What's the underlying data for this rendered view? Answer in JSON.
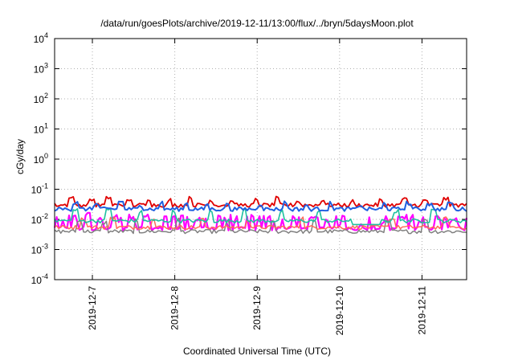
{
  "chart_data": {
    "type": "line",
    "title": "/data/run/goesPlots/archive/2019-12-11/13:00/flux/../bryn/5daysMoon.plot",
    "xlabel": "Coordinated Universal Time (UTC)",
    "ylabel": "cGy/day",
    "y_scale": "log",
    "ylim": [
      0.0001,
      10000
    ],
    "y_ticks": [
      {
        "value": 0.0001,
        "base": "10",
        "exp": "-4"
      },
      {
        "value": 0.001,
        "base": "10",
        "exp": "-3"
      },
      {
        "value": 0.01,
        "base": "10",
        "exp": "-2"
      },
      {
        "value": 0.1,
        "base": "10",
        "exp": "-1"
      },
      {
        "value": 1,
        "base": "10",
        "exp": "0"
      },
      {
        "value": 10,
        "base": "10",
        "exp": "1"
      },
      {
        "value": 100,
        "base": "10",
        "exp": "2"
      },
      {
        "value": 1000,
        "base": "10",
        "exp": "3"
      },
      {
        "value": 10000,
        "base": "10",
        "exp": "4"
      }
    ],
    "xlim": [
      "2019-12-06T13:00",
      "2019-12-11T13:00"
    ],
    "x_ticks": [
      "2019-12-7",
      "2019-12-8",
      "2019-12-9",
      "2019-12-10",
      "2019-12-11"
    ],
    "grid": true,
    "series": [
      {
        "color": "#ff00ff",
        "width": 2.2,
        "base": 0.005,
        "spikes": [
          [
            0.05,
            0.012
          ],
          [
            0.08,
            0.015
          ],
          [
            0.11,
            0.01
          ],
          [
            0.15,
            0.014
          ],
          [
            0.19,
            0.011
          ],
          [
            0.22,
            0.013
          ],
          [
            0.27,
            0.012
          ],
          [
            0.31,
            0.014
          ],
          [
            0.35,
            0.01
          ],
          [
            0.4,
            0.013
          ],
          [
            0.44,
            0.012
          ],
          [
            0.48,
            0.011
          ],
          [
            0.52,
            0.013
          ],
          [
            0.58,
            0.012
          ],
          [
            0.62,
            0.014
          ],
          [
            0.66,
            0.01
          ],
          [
            0.7,
            0.012
          ],
          [
            0.8,
            0.013
          ],
          [
            0.84,
            0.012
          ],
          [
            0.89,
            0.011
          ],
          [
            0.93,
            0.012
          ],
          [
            0.97,
            0.01
          ]
        ]
      },
      {
        "color": "#808080",
        "width": 1.5,
        "base": 0.004,
        "spikes": [
          [
            0.06,
            0.009
          ],
          [
            0.12,
            0.008
          ],
          [
            0.2,
            0.009
          ],
          [
            0.3,
            0.01
          ],
          [
            0.42,
            0.009
          ],
          [
            0.53,
            0.008
          ],
          [
            0.63,
            0.009
          ],
          [
            0.81,
            0.008
          ],
          [
            0.9,
            0.009
          ]
        ]
      },
      {
        "color": "#ff6a5a",
        "width": 1.5,
        "base": 0.0055,
        "spikes": [
          [
            0.07,
            0.01
          ],
          [
            0.14,
            0.011
          ],
          [
            0.24,
            0.01
          ],
          [
            0.36,
            0.011
          ],
          [
            0.47,
            0.01
          ],
          [
            0.6,
            0.011
          ],
          [
            0.82,
            0.01
          ],
          [
            0.95,
            0.011
          ]
        ]
      },
      {
        "color": "#20c0a0",
        "width": 1.6,
        "base": 0.009,
        "spikes": [
          [
            0.05,
            0.02
          ],
          [
            0.13,
            0.022
          ],
          [
            0.21,
            0.018
          ],
          [
            0.29,
            0.02
          ],
          [
            0.38,
            0.019
          ],
          [
            0.46,
            0.021
          ],
          [
            0.55,
            0.018
          ],
          [
            0.64,
            0.02
          ],
          [
            0.83,
            0.019
          ],
          [
            0.92,
            0.02
          ]
        ]
      },
      {
        "color": "#e00000",
        "width": 1.8,
        "base": 0.03,
        "spikes": [
          [
            0.04,
            0.05
          ],
          [
            0.09,
            0.045
          ],
          [
            0.13,
            0.05
          ],
          [
            0.18,
            0.04
          ],
          [
            0.23,
            0.048
          ],
          [
            0.28,
            0.045
          ],
          [
            0.33,
            0.05
          ],
          [
            0.38,
            0.042
          ],
          [
            0.43,
            0.046
          ],
          [
            0.49,
            0.044
          ],
          [
            0.54,
            0.05
          ],
          [
            0.59,
            0.04
          ],
          [
            0.65,
            0.045
          ],
          [
            0.72,
            0.04
          ],
          [
            0.79,
            0.045
          ],
          [
            0.85,
            0.047
          ],
          [
            0.9,
            0.042
          ],
          [
            0.95,
            0.048
          ]
        ]
      },
      {
        "color": "#2060e0",
        "width": 2.0,
        "base": 0.022,
        "spikes": [
          [
            0.05,
            0.036
          ],
          [
            0.1,
            0.032
          ],
          [
            0.16,
            0.038
          ],
          [
            0.21,
            0.03
          ],
          [
            0.26,
            0.035
          ],
          [
            0.32,
            0.036
          ],
          [
            0.37,
            0.031
          ],
          [
            0.42,
            0.034
          ],
          [
            0.5,
            0.033
          ],
          [
            0.56,
            0.036
          ],
          [
            0.61,
            0.03
          ],
          [
            0.67,
            0.034
          ],
          [
            0.74,
            0.03
          ],
          [
            0.8,
            0.034
          ],
          [
            0.86,
            0.035
          ],
          [
            0.91,
            0.031
          ],
          [
            0.96,
            0.034
          ]
        ]
      }
    ]
  }
}
